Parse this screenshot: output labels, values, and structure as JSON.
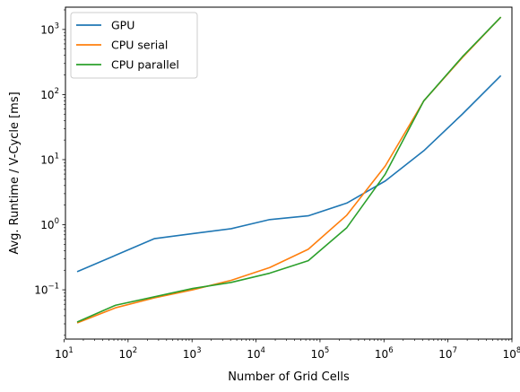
{
  "chart_data": {
    "type": "line",
    "title": "",
    "xlabel": "Number of Grid Cells",
    "ylabel": "Avg. Runtime / V-Cycle [ms]",
    "xscale": "log",
    "yscale": "log",
    "xlim": [
      10.5,
      100000000
    ],
    "ylim": [
      0.0175,
      2200
    ],
    "grid": false,
    "legend_position": "top-left",
    "x_ticks": [
      {
        "value": 10,
        "base": "10",
        "exp": "1"
      },
      {
        "value": 100,
        "base": "10",
        "exp": "2"
      },
      {
        "value": 1000,
        "base": "10",
        "exp": "3"
      },
      {
        "value": 10000,
        "base": "10",
        "exp": "4"
      },
      {
        "value": 100000,
        "base": "10",
        "exp": "5"
      },
      {
        "value": 1000000,
        "base": "10",
        "exp": "6"
      },
      {
        "value": 10000000,
        "base": "10",
        "exp": "7"
      },
      {
        "value": 100000000,
        "base": "10",
        "exp": "8"
      }
    ],
    "y_ticks": [
      {
        "value": 0.1,
        "base": "10",
        "exp": "−1"
      },
      {
        "value": 1,
        "base": "10",
        "exp": "0"
      },
      {
        "value": 10,
        "base": "10",
        "exp": "1"
      },
      {
        "value": 100,
        "base": "10",
        "exp": "2"
      },
      {
        "value": 1000,
        "base": "10",
        "exp": "3"
      }
    ],
    "x": [
      16,
      64,
      256,
      1024,
      4096,
      16384,
      65536,
      262144,
      1048576,
      4194304,
      16777216,
      67108864
    ],
    "series": [
      {
        "name": "GPU",
        "color": "#1f77b4",
        "values": [
          0.19,
          0.34,
          0.61,
          0.73,
          0.87,
          1.2,
          1.37,
          2.15,
          4.7,
          13.7,
          50,
          195
        ]
      },
      {
        "name": "CPU serial",
        "color": "#ff7f0e",
        "values": [
          0.031,
          0.053,
          0.075,
          0.1,
          0.14,
          0.22,
          0.42,
          1.4,
          8,
          80,
          370,
          1550
        ]
      },
      {
        "name": "CPU parallel",
        "color": "#2ca02c",
        "values": [
          0.032,
          0.058,
          0.078,
          0.105,
          0.13,
          0.18,
          0.28,
          0.9,
          6,
          80,
          380,
          1550
        ]
      }
    ]
  }
}
